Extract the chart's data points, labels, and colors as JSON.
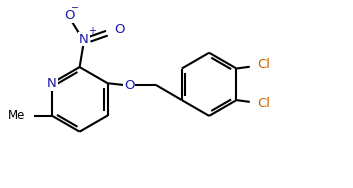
{
  "bg_color": "#ffffff",
  "line_color": "#000000",
  "atom_color": "#1a1aaa",
  "cl_color": "#cc6600",
  "bond_lw": 1.5,
  "figsize": [
    3.53,
    1.88
  ],
  "dpi": 100,
  "xlim": [
    0,
    9.5
  ],
  "ylim": [
    0,
    5.2
  ]
}
